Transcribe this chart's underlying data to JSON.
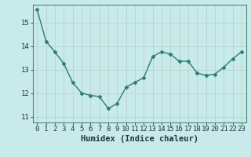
{
  "x": [
    0,
    1,
    2,
    3,
    4,
    5,
    6,
    7,
    8,
    9,
    10,
    11,
    12,
    13,
    14,
    15,
    16,
    17,
    18,
    19,
    20,
    21,
    22,
    23
  ],
  "y": [
    15.55,
    14.2,
    13.75,
    13.25,
    12.45,
    12.0,
    11.9,
    11.85,
    11.35,
    11.55,
    12.25,
    12.45,
    12.65,
    13.55,
    13.75,
    13.65,
    13.35,
    13.35,
    12.85,
    12.75,
    12.8,
    13.1,
    13.45,
    13.75
  ],
  "line_color": "#2e7d6e",
  "bg_color": "#c8eaea",
  "grid_color": "#b8d8d0",
  "xlabel": "Humidex (Indice chaleur)",
  "xlim": [
    -0.5,
    23.5
  ],
  "ylim": [
    10.75,
    15.75
  ],
  "yticks": [
    11,
    12,
    13,
    14,
    15
  ],
  "xticks": [
    0,
    1,
    2,
    3,
    4,
    5,
    6,
    7,
    8,
    9,
    10,
    11,
    12,
    13,
    14,
    15,
    16,
    17,
    18,
    19,
    20,
    21,
    22,
    23
  ],
  "tick_fontsize": 6.5,
  "xlabel_fontsize": 7.5,
  "marker_size": 2.5,
  "line_width": 1.0,
  "spine_color": "#4a8a7a"
}
